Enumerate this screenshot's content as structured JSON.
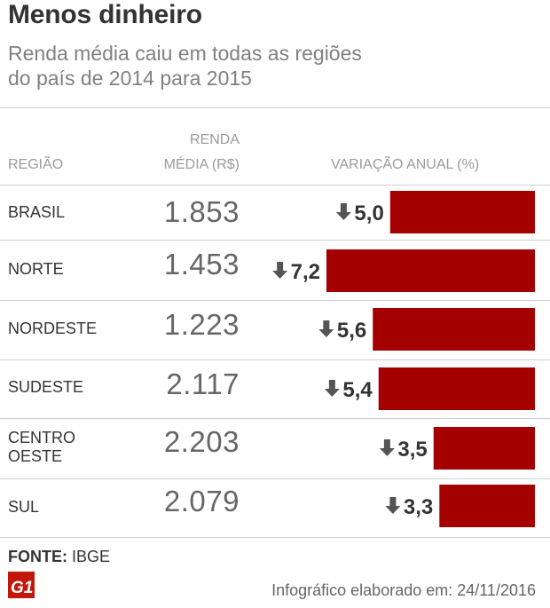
{
  "header": {
    "title": "Menos dinheiro",
    "subtitle_line1": "Renda média caiu em todas as regiões",
    "subtitle_line2": "do país de 2014 para 2015"
  },
  "table": {
    "col_region": "REGIÃO",
    "col_renda_line1": "RENDA",
    "col_renda_line2": "MÉDIA (R$)",
    "col_variacao": "VARIAÇÃO  ANUAL (%)",
    "rows": [
      {
        "region_line1": "BRASIL",
        "region_line2": "",
        "renda": "1.853",
        "variacao": "5,0"
      },
      {
        "region_line1": "NORTE",
        "region_line2": "",
        "renda": "1.453",
        "variacao": "7,2"
      },
      {
        "region_line1": "NORDESTE",
        "region_line2": "",
        "renda": "1.223",
        "variacao": "5,6"
      },
      {
        "region_line1": "SUDESTE",
        "region_line2": "",
        "renda": "2.117",
        "variacao": "5,4"
      },
      {
        "region_line1": "CENTRO",
        "region_line2": "OESTE",
        "renda": "2.203",
        "variacao": "3,5"
      },
      {
        "region_line1": "SUL",
        "region_line2": "",
        "renda": "2.079",
        "variacao": "3,3"
      }
    ]
  },
  "chart_data": {
    "type": "bar",
    "orientation": "horizontal",
    "title": "Menos dinheiro",
    "subtitle": "Renda média caiu em todas as regiões do país de 2014 para 2015",
    "categories": [
      "BRASIL",
      "NORTE",
      "NORDESTE",
      "SUDESTE",
      "CENTRO OESTE",
      "SUL"
    ],
    "series": [
      {
        "name": "VARIAÇÃO  ANUAL (%)",
        "values": [
          -5.0,
          -7.2,
          -5.6,
          -5.4,
          -3.5,
          -3.3
        ]
      }
    ],
    "renda_media": [
      1853,
      1453,
      1223,
      2117,
      2203,
      2079
    ],
    "xlim": [
      0,
      7.2
    ],
    "bar_color": "#a50000",
    "arrow_color": "#555555",
    "label_color": "#333333"
  },
  "footer": {
    "fonte_label": "FONTE:",
    "fonte_value": "IBGE",
    "logo_text": "G1",
    "credit": "Infográfico elaborado em: 24/11/2016"
  }
}
